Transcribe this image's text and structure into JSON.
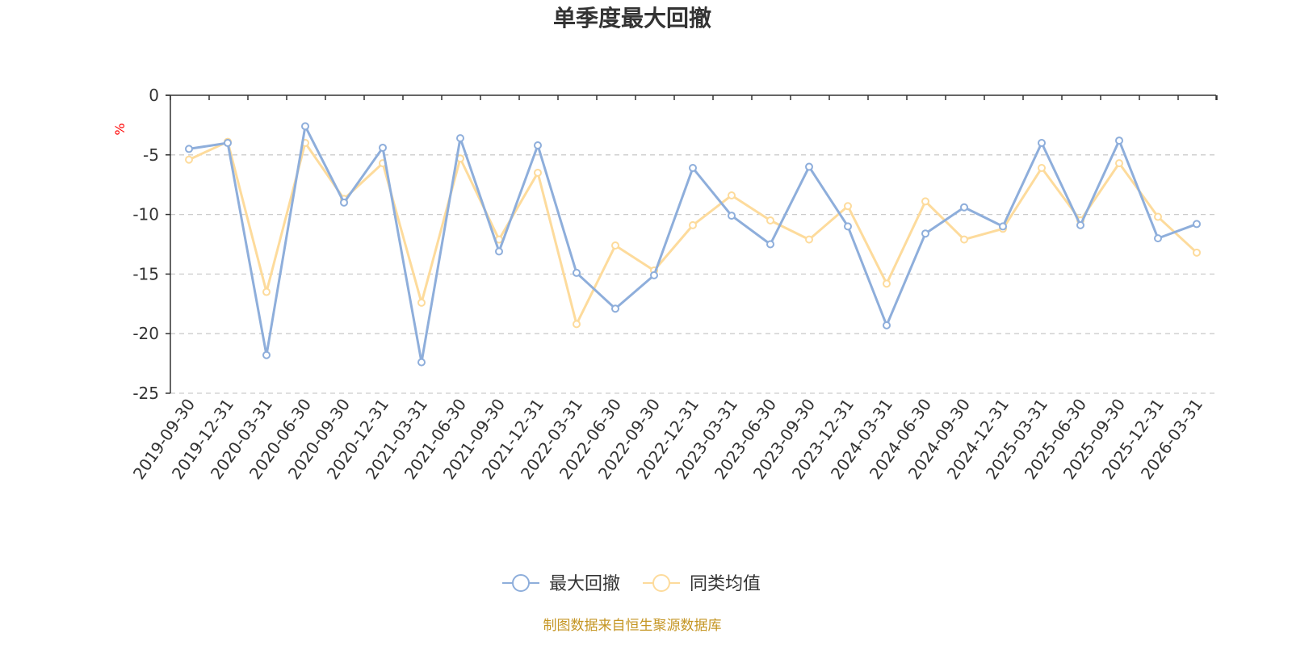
{
  "chart_data": {
    "type": "line",
    "title": "单季度最大回撤",
    "ylabel": "%",
    "ylim": [
      -25,
      0
    ],
    "yticks": [
      0,
      -5,
      -10,
      -15,
      -20,
      -25
    ],
    "grid": true,
    "legend_position": "bottom-center",
    "categories": [
      "2019-09-30",
      "2019-12-31",
      "2020-03-31",
      "2020-06-30",
      "2020-09-30",
      "2020-12-31",
      "2021-03-31",
      "2021-06-30",
      "2021-09-30",
      "2021-12-31",
      "2022-03-31",
      "2022-06-30",
      "2022-09-30",
      "2022-12-31",
      "2023-03-31",
      "2023-06-30",
      "2023-09-30",
      "2023-12-31",
      "2024-03-31",
      "2024-06-30",
      "2024-09-30",
      "2024-12-31",
      "2025-03-31",
      "2025-06-30",
      "2025-09-30",
      "2025-12-31",
      "2026-03-31"
    ],
    "series": [
      {
        "name": "最大回撤",
        "color": "#8eaedb",
        "values": [
          -4.5,
          -4.0,
          -21.8,
          -2.6,
          -9.0,
          -4.4,
          -22.4,
          -3.6,
          -13.1,
          -4.2,
          -14.9,
          -17.9,
          -15.1,
          -6.1,
          -10.1,
          -12.5,
          -6.0,
          -11.0,
          -19.3,
          -11.6,
          -9.4,
          -11.0,
          -4.0,
          -10.9,
          -3.8,
          -12.0,
          -10.8
        ]
      },
      {
        "name": "同类均值",
        "color": "#fddb9c",
        "values": [
          -5.4,
          -3.9,
          -16.5,
          -4.0,
          -8.7,
          -5.7,
          -17.4,
          -5.3,
          -12.1,
          -6.5,
          -19.2,
          -12.6,
          -14.7,
          -10.9,
          -8.4,
          -10.5,
          -12.1,
          -9.3,
          -15.8,
          -8.9,
          -12.1,
          -11.2,
          -6.1,
          -10.5,
          -5.7,
          -10.2,
          -13.2
        ]
      }
    ]
  },
  "colors": {
    "axis": "#333333",
    "grid": "#cccccc",
    "unit": "#ff0000",
    "source": "#c59624"
  },
  "source_text": "制图数据来自恒生聚源数据库"
}
